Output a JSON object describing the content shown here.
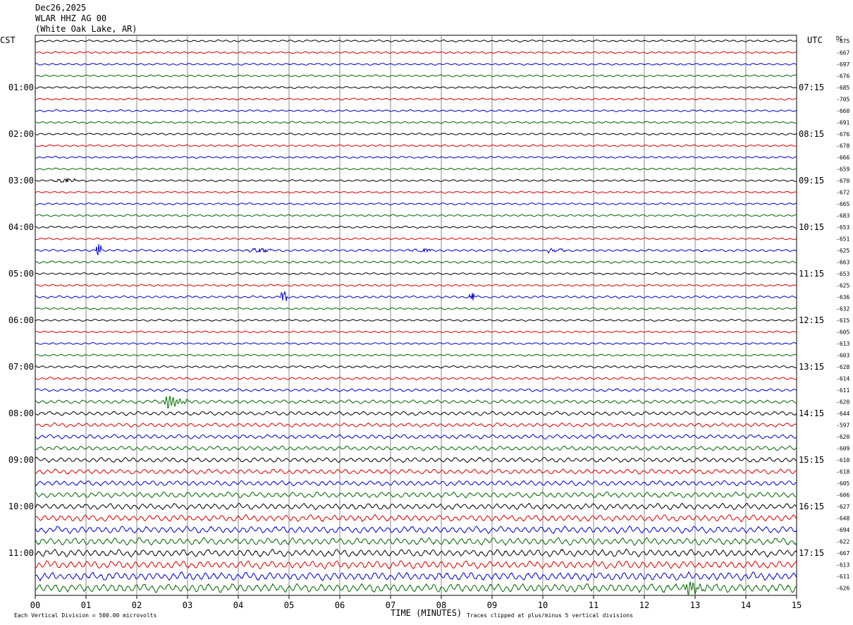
{
  "header": {
    "date": "Dec26,2025",
    "station": "WLAR HHZ AG 00",
    "location": "(White Oak Lake, AR)"
  },
  "footer": {
    "scale_note": "Each Vertical Division =  500.00 microvolts",
    "axis_title": "TIME (MINUTES)",
    "clip_note": "Traces clipped at plus/minus 5 vertical divisions"
  },
  "chart_data": {
    "type": "line",
    "title": "",
    "xlabel": "TIME (MINUTES)",
    "xlim": [
      0,
      15
    ],
    "x_ticks": [
      "00",
      "01",
      "02",
      "03",
      "04",
      "05",
      "06",
      "07",
      "08",
      "09",
      "10",
      "11",
      "12",
      "13",
      "14",
      "15"
    ],
    "left_axis_label": "CST",
    "right_axis_label": "UTC",
    "dc_label": "DC",
    "left_time_labels": [
      {
        "row": 4,
        "label": "01:00"
      },
      {
        "row": 8,
        "label": "02:00"
      },
      {
        "row": 12,
        "label": "03:00"
      },
      {
        "row": 16,
        "label": "04:00"
      },
      {
        "row": 20,
        "label": "05:00"
      },
      {
        "row": 24,
        "label": "06:00"
      },
      {
        "row": 28,
        "label": "07:00"
      },
      {
        "row": 32,
        "label": "08:00"
      },
      {
        "row": 36,
        "label": "09:00"
      },
      {
        "row": 40,
        "label": "10:00"
      },
      {
        "row": 44,
        "label": "11:00"
      }
    ],
    "right_time_labels": [
      {
        "row": 4,
        "label": "07:15"
      },
      {
        "row": 8,
        "label": "08:15"
      },
      {
        "row": 12,
        "label": "09:15"
      },
      {
        "row": 16,
        "label": "10:15"
      },
      {
        "row": 20,
        "label": "11:15"
      },
      {
        "row": 24,
        "label": "12:15"
      },
      {
        "row": 28,
        "label": "13:15"
      },
      {
        "row": 32,
        "label": "14:15"
      },
      {
        "row": 36,
        "label": "15:15"
      },
      {
        "row": 40,
        "label": "16:15"
      },
      {
        "row": 44,
        "label": "17:15"
      }
    ],
    "dc_offsets": [
      -675,
      -667,
      -697,
      -676,
      -685,
      -705,
      -660,
      -691,
      -676,
      -678,
      -666,
      -659,
      -670,
      -672,
      -665,
      -683,
      -653,
      -651,
      -625,
      -663,
      -653,
      -625,
      -636,
      -632,
      -615,
      -605,
      -613,
      -603,
      -628,
      -614,
      -611,
      -620,
      -644,
      -597,
      -620,
      -609,
      -610,
      -618,
      -605,
      -606,
      -627,
      -648,
      -694,
      -622,
      -667,
      -613,
      -611,
      -626
    ],
    "trace_colors": [
      "#000000",
      "#dd0000",
      "#0000cc",
      "#006600"
    ],
    "amplitude_levels": [
      1,
      1,
      1,
      1,
      1,
      1,
      1,
      1,
      1,
      1,
      1,
      1,
      1,
      1,
      1,
      1,
      1,
      1,
      1.2,
      1.2,
      1,
      1,
      1.2,
      1,
      1,
      1,
      1,
      1,
      1.2,
      1.3,
      1.5,
      1.8,
      2,
      2,
      2.2,
      2.2,
      2.4,
      2.5,
      2.6,
      2.8,
      3,
      3.2,
      3.4,
      3.5,
      3.6,
      3.8,
      4,
      4.2
    ],
    "events": [
      {
        "row": 12,
        "minute": 0.6,
        "label": "noise burst"
      },
      {
        "row": 18,
        "minute": 1.25,
        "label": "spike"
      },
      {
        "row": 18,
        "minute": 4.4,
        "label": "burst"
      },
      {
        "row": 18,
        "minute": 7.6,
        "label": "burst"
      },
      {
        "row": 18,
        "minute": 10.2,
        "label": "burst"
      },
      {
        "row": 22,
        "minute": 4.9,
        "label": "spike"
      },
      {
        "row": 22,
        "minute": 8.6,
        "label": "spike"
      },
      {
        "row": 31,
        "minute": 2.6,
        "label": "event"
      },
      {
        "row": 47,
        "minute": 12.85,
        "label": "event"
      }
    ]
  }
}
